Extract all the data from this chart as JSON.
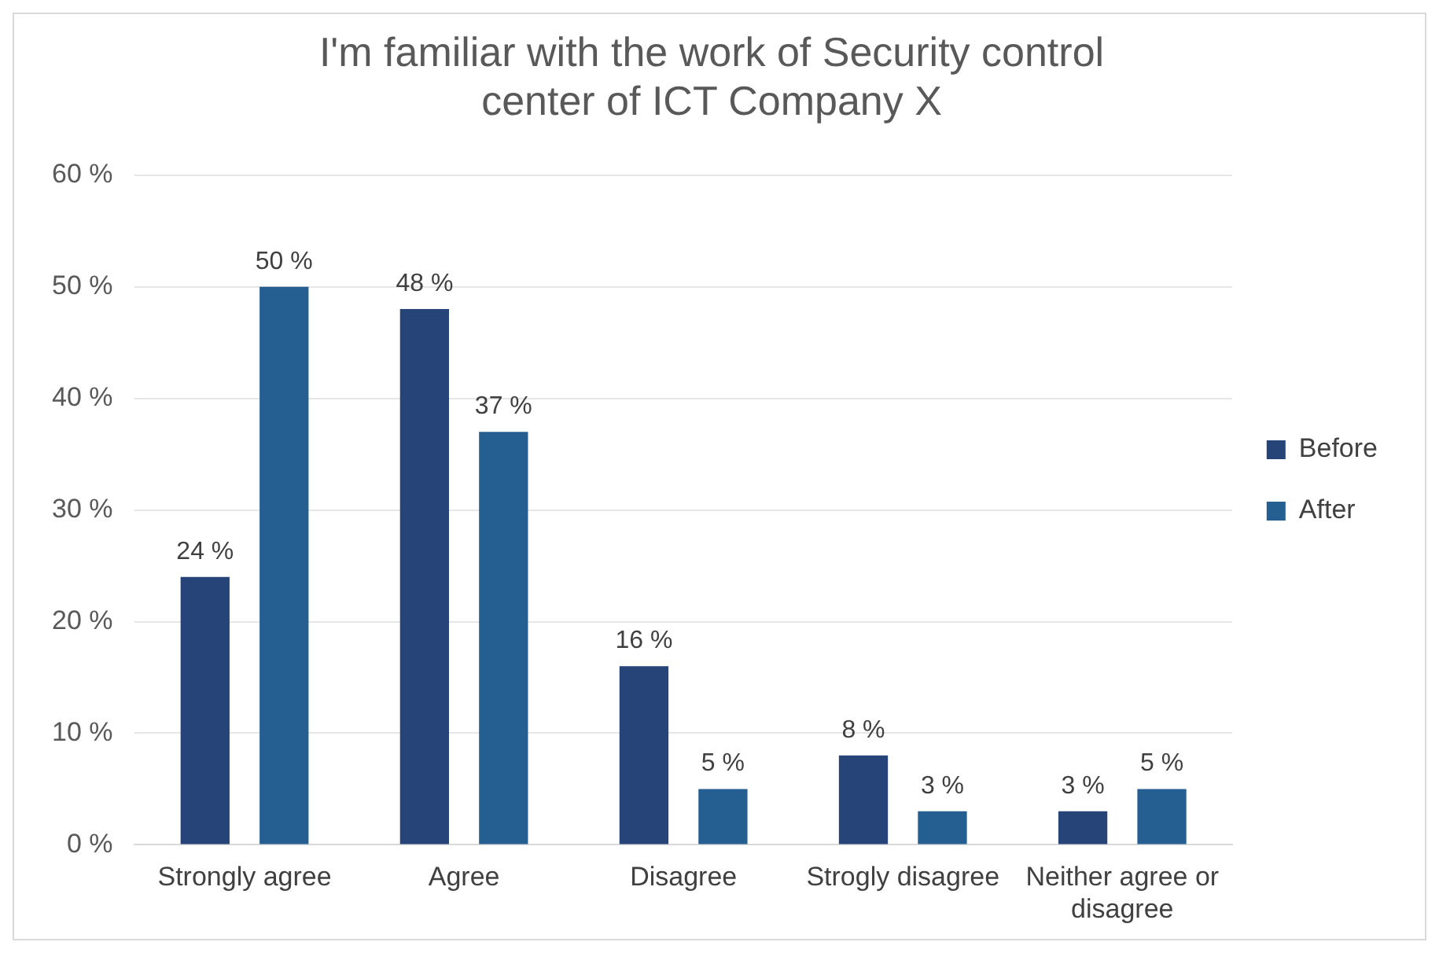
{
  "chart_data": {
    "type": "bar",
    "title": "I'm familiar with the work of Security control center of ICT Company X",
    "categories": [
      "Strongly agree",
      "Agree",
      "Disagree",
      "Strogly disagree",
      "Neither agree or disagree"
    ],
    "series": [
      {
        "name": "Before",
        "color": "#264478",
        "values": [
          24,
          48,
          16,
          8,
          3
        ],
        "value_labels": [
          "24 %",
          "48 %",
          "16 %",
          "8 %",
          "3 %"
        ]
      },
      {
        "name": "After",
        "color": "#255e91",
        "values": [
          50,
          37,
          5,
          3,
          5
        ],
        "value_labels": [
          "50 %",
          "37 %",
          "5 %",
          "3 %",
          "5 %"
        ]
      }
    ],
    "ylim": [
      0,
      60
    ],
    "yticks": [
      {
        "value": 0,
        "label": "0 %"
      },
      {
        "value": 10,
        "label": "10 %"
      },
      {
        "value": 20,
        "label": "20 %"
      },
      {
        "value": 30,
        "label": "30 %"
      },
      {
        "value": 40,
        "label": "40 %"
      },
      {
        "value": 50,
        "label": "50 %"
      },
      {
        "value": 60,
        "label": "60 %"
      }
    ],
    "grid": "y",
    "legend": "right"
  }
}
